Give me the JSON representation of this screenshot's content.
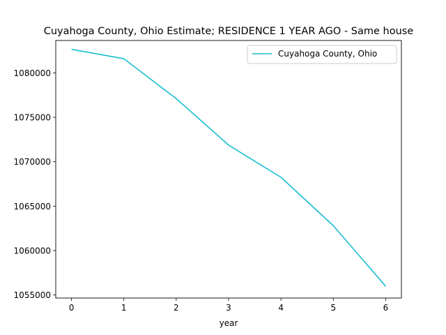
{
  "chart_data": {
    "type": "line",
    "title": "Cuyahoga County, Ohio Estimate; RESIDENCE 1 YEAR AGO - Same house",
    "xlabel": "year",
    "ylabel": "",
    "x": [
      0,
      1,
      2,
      3,
      4,
      5,
      6
    ],
    "xticks": [
      "0",
      "1",
      "2",
      "3",
      "4",
      "5",
      "6"
    ],
    "xlim": [
      -0.3,
      6.3
    ],
    "yticks": [
      1055000,
      1060000,
      1065000,
      1070000,
      1075000,
      1080000
    ],
    "ytick_labels": [
      "1055000",
      "1060000",
      "1065000",
      "1070000",
      "1075000",
      "1080000"
    ],
    "ylim": [
      1054660,
      1083640
    ],
    "grid": false,
    "legend_position": "top-right",
    "series": [
      {
        "name": "Cuyahoga County, Ohio",
        "color": "#17becf",
        "values": [
          1082640,
          1081590,
          1077100,
          1071870,
          1068250,
          1062800,
          1055980
        ]
      }
    ]
  }
}
